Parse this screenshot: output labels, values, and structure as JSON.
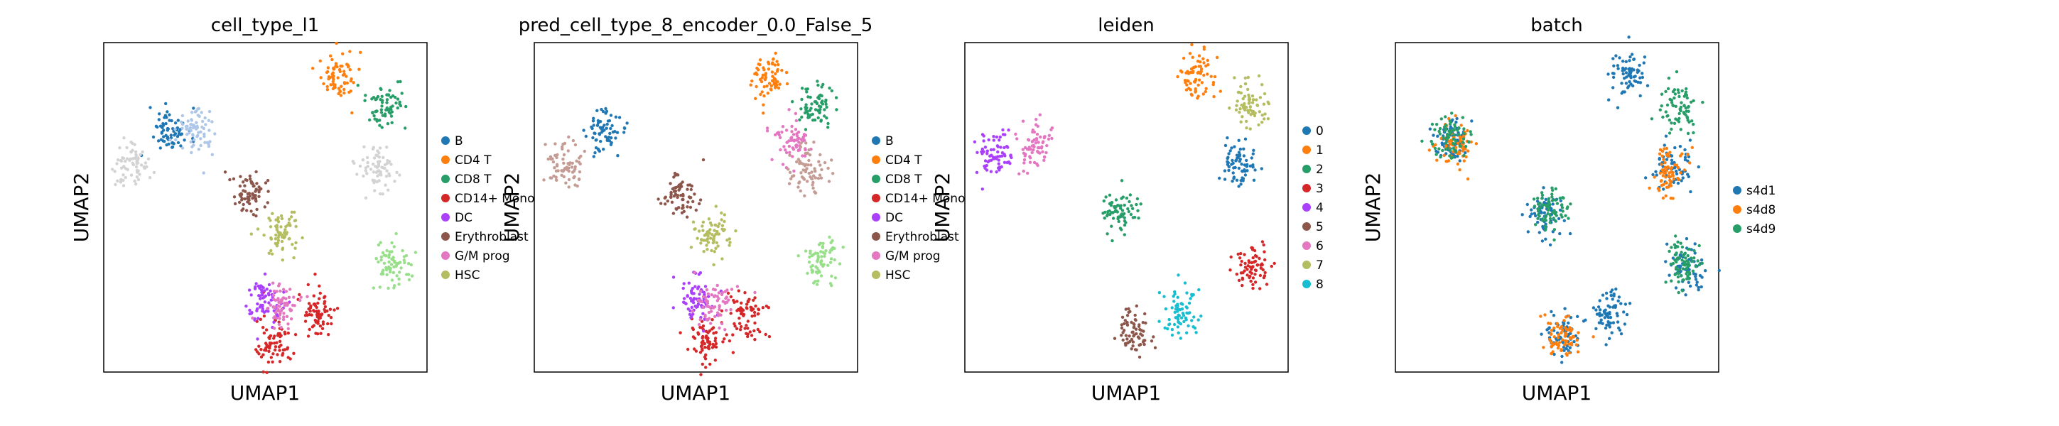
{
  "figure": {
    "background": "#ffffff",
    "axis_color": "#000000"
  },
  "panels": [
    {
      "title": "cell_type_l1",
      "xlabel": "UMAP1",
      "ylabel": "UMAP2",
      "legend": [
        {
          "label": "B",
          "color": "#1f77b4"
        },
        {
          "label": "CD4 T",
          "color": "#ff7f0e"
        },
        {
          "label": "CD8 T",
          "color": "#279e68"
        },
        {
          "label": "CD14+ Mono",
          "color": "#d62728"
        },
        {
          "label": "DC",
          "color": "#aa40fc"
        },
        {
          "label": "Erythroblast",
          "color": "#8c564b"
        },
        {
          "label": "G/M prog",
          "color": "#e377c2"
        },
        {
          "label": "HSC",
          "color": "#b5bd61"
        }
      ]
    },
    {
      "title": "pred_cell_type_8_encoder_0.0_False_5",
      "xlabel": "UMAP1",
      "ylabel": "UMAP2",
      "legend": [
        {
          "label": "B",
          "color": "#1f77b4"
        },
        {
          "label": "CD4 T",
          "color": "#ff7f0e"
        },
        {
          "label": "CD8 T",
          "color": "#279e68"
        },
        {
          "label": "CD14+ Mono",
          "color": "#d62728"
        },
        {
          "label": "DC",
          "color": "#aa40fc"
        },
        {
          "label": "Erythroblast",
          "color": "#8c564b"
        },
        {
          "label": "G/M prog",
          "color": "#e377c2"
        },
        {
          "label": "HSC",
          "color": "#b5bd61"
        }
      ]
    },
    {
      "title": "leiden",
      "xlabel": "UMAP1",
      "ylabel": "UMAP2",
      "legend": [
        {
          "label": "0",
          "color": "#1f77b4"
        },
        {
          "label": "1",
          "color": "#ff7f0e"
        },
        {
          "label": "2",
          "color": "#279e68"
        },
        {
          "label": "3",
          "color": "#d62728"
        },
        {
          "label": "4",
          "color": "#aa40fc"
        },
        {
          "label": "5",
          "color": "#8c564b"
        },
        {
          "label": "6",
          "color": "#e377c2"
        },
        {
          "label": "7",
          "color": "#b5bd61"
        },
        {
          "label": "8",
          "color": "#17becf"
        }
      ]
    },
    {
      "title": "batch",
      "xlabel": "UMAP1",
      "ylabel": "UMAP2",
      "legend": [
        {
          "label": "s4d1",
          "color": "#1f77b4"
        },
        {
          "label": "s4d8",
          "color": "#ff7f0e"
        },
        {
          "label": "s4d9",
          "color": "#279e68"
        }
      ]
    }
  ],
  "chart_data": [
    {
      "type": "scatter",
      "title": "cell_type_l1",
      "xlabel": "UMAP1",
      "ylabel": "UMAP2",
      "grid": false,
      "legend_position": "right",
      "ticks": "none",
      "series": [
        {
          "name": "B",
          "color": "#1f77b4",
          "centers": [
            [
              0.21,
              0.73
            ]
          ]
        },
        {
          "name": "CD4 T",
          "color": "#ff7f0e",
          "centers": [
            [
              0.72,
              0.9
            ]
          ]
        },
        {
          "name": "CD8 T",
          "color": "#279e68",
          "centers": [
            [
              0.87,
              0.81
            ]
          ]
        },
        {
          "name": "CD14+ Mono",
          "color": "#d62728",
          "centers": [
            [
              0.53,
              0.08
            ],
            [
              0.66,
              0.18
            ]
          ]
        },
        {
          "name": "DC",
          "color": "#aa40fc",
          "centers": [
            [
              0.5,
              0.22
            ]
          ]
        },
        {
          "name": "Erythroblast",
          "color": "#8c564b",
          "centers": [
            [
              0.45,
              0.54
            ]
          ]
        },
        {
          "name": "G/M prog",
          "color": "#e377c2",
          "centers": [
            [
              0.56,
              0.2
            ]
          ]
        },
        {
          "name": "HSC",
          "color": "#b5bd61",
          "centers": [
            [
              0.55,
              0.42
            ]
          ]
        },
        {
          "name": "",
          "color": "#d3d3d3",
          "centers": [
            [
              0.09,
              0.63
            ],
            [
              0.85,
              0.62
            ]
          ]
        },
        {
          "name": "",
          "color": "#aec7e8",
          "centers": [
            [
              0.28,
              0.73
            ]
          ]
        },
        {
          "name": "",
          "color": "#98df8a",
          "centers": [
            [
              0.89,
              0.33
            ]
          ]
        }
      ]
    },
    {
      "type": "scatter",
      "title": "pred_cell_type_8_encoder_0.0_False_5",
      "xlabel": "UMAP1",
      "ylabel": "UMAP2",
      "grid": false,
      "legend_position": "right",
      "ticks": "none",
      "series": [
        {
          "name": "B",
          "color": "#1f77b4",
          "centers": [
            [
              0.22,
              0.73
            ]
          ]
        },
        {
          "name": "CD4 T",
          "color": "#ff7f0e",
          "centers": [
            [
              0.72,
              0.9
            ]
          ]
        },
        {
          "name": "CD8 T",
          "color": "#279e68",
          "centers": [
            [
              0.87,
              0.81
            ]
          ]
        },
        {
          "name": "CD14+ Mono",
          "color": "#d62728",
          "centers": [
            [
              0.53,
              0.08
            ],
            [
              0.66,
              0.18
            ]
          ]
        },
        {
          "name": "DC",
          "color": "#aa40fc",
          "centers": [
            [
              0.5,
              0.22
            ]
          ]
        },
        {
          "name": "Erythroblast",
          "color": "#8c564b",
          "centers": [
            [
              0.45,
              0.54
            ]
          ]
        },
        {
          "name": "G/M prog",
          "color": "#e377c2",
          "centers": [
            [
              0.56,
              0.21
            ],
            [
              0.8,
              0.7
            ]
          ]
        },
        {
          "name": "HSC",
          "color": "#b5bd61",
          "centers": [
            [
              0.55,
              0.42
            ]
          ]
        },
        {
          "name": "",
          "color": "#c49c94",
          "centers": [
            [
              0.09,
              0.63
            ],
            [
              0.85,
              0.62
            ]
          ]
        },
        {
          "name": "",
          "color": "#98df8a",
          "centers": [
            [
              0.89,
              0.33
            ]
          ]
        }
      ]
    },
    {
      "type": "scatter",
      "title": "leiden",
      "xlabel": "UMAP1",
      "ylabel": "UMAP2",
      "grid": false,
      "legend_position": "right",
      "ticks": "none",
      "series": [
        {
          "name": "0",
          "color": "#1f77b4",
          "centers": [
            [
              0.85,
              0.63
            ]
          ]
        },
        {
          "name": "1",
          "color": "#ff7f0e",
          "centers": [
            [
              0.72,
              0.9
            ]
          ]
        },
        {
          "name": "2",
          "color": "#279e68",
          "centers": [
            [
              0.48,
              0.48
            ]
          ]
        },
        {
          "name": "3",
          "color": "#d62728",
          "centers": [
            [
              0.89,
              0.32
            ]
          ]
        },
        {
          "name": "4",
          "color": "#aa40fc",
          "centers": [
            [
              0.09,
              0.66
            ]
          ]
        },
        {
          "name": "5",
          "color": "#8c564b",
          "centers": [
            [
              0.52,
              0.12
            ]
          ]
        },
        {
          "name": "6",
          "color": "#e377c2",
          "centers": [
            [
              0.21,
              0.7
            ]
          ]
        },
        {
          "name": "7",
          "color": "#b5bd61",
          "centers": [
            [
              0.88,
              0.81
            ]
          ]
        },
        {
          "name": "8",
          "color": "#17becf",
          "centers": [
            [
              0.67,
              0.18
            ]
          ]
        }
      ]
    },
    {
      "type": "scatter",
      "title": "batch",
      "xlabel": "UMAP1",
      "ylabel": "UMAP2",
      "grid": false,
      "legend_position": "right",
      "ticks": "none",
      "series": [
        {
          "name": "s4d1",
          "color": "#1f77b4",
          "centers": [
            [
              0.18,
              0.7
            ],
            [
              0.72,
              0.9
            ],
            [
              0.47,
              0.48
            ],
            [
              0.52,
              0.12
            ],
            [
              0.86,
              0.62
            ],
            [
              0.9,
              0.32
            ],
            [
              0.66,
              0.18
            ]
          ]
        },
        {
          "name": "s4d8",
          "color": "#ff7f0e",
          "centers": [
            [
              0.19,
              0.7
            ],
            [
              0.51,
              0.11
            ],
            [
              0.85,
              0.61
            ]
          ]
        },
        {
          "name": "s4d9",
          "color": "#279e68",
          "centers": [
            [
              0.17,
              0.71
            ],
            [
              0.48,
              0.49
            ],
            [
              0.88,
              0.81
            ],
            [
              0.89,
              0.33
            ]
          ]
        }
      ]
    }
  ]
}
